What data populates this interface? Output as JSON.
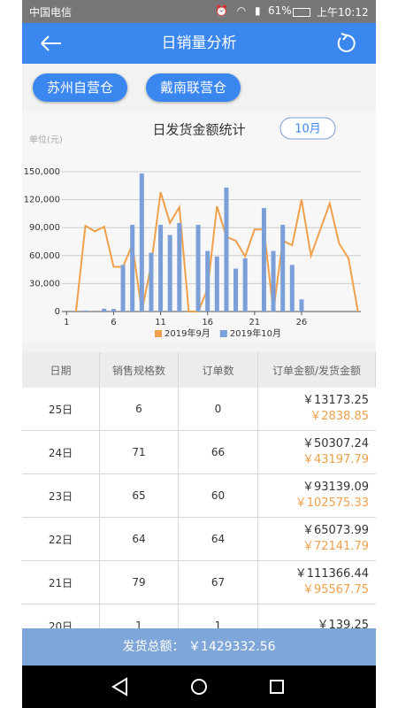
{
  "status_bar": {
    "carrier": "中国电信",
    "battery": "61%",
    "time": "上午10:12"
  },
  "app_bar": {
    "title": "日销量分析"
  },
  "warehouses": [
    "苏州自营仓",
    "戴南联营仓"
  ],
  "chart_data": {
    "type": "combo",
    "title": "日发货金额统计",
    "month_button": "10月",
    "y_unit": "单位(元)",
    "x": [
      1,
      2,
      3,
      4,
      5,
      6,
      7,
      8,
      9,
      10,
      11,
      12,
      13,
      14,
      15,
      16,
      17,
      18,
      19,
      20,
      21,
      22,
      23,
      24,
      25,
      26,
      27,
      28,
      29,
      30,
      31,
      32
    ],
    "xlim": [
      0.5,
      32.5
    ],
    "xticks": [
      1,
      6,
      11,
      16,
      21,
      26
    ],
    "ylim": [
      0,
      150000
    ],
    "yticks": [
      0,
      {
        "value": 30000,
        "label": "30,000"
      },
      {
        "value": 60000,
        "label": "60,000"
      },
      {
        "value": 90000,
        "label": "90,000"
      },
      {
        "value": 120000,
        "label": "120,000"
      },
      {
        "value": 150000,
        "label": "150,000"
      }
    ],
    "grid": true,
    "legend": "bottom",
    "series": [
      {
        "name": "2019年9月",
        "type": "line",
        "color": "#f0a04b",
        "values": [
          null,
          0,
          92000,
          86000,
          91000,
          48000,
          48000,
          72000,
          0,
          50000,
          128000,
          95000,
          112000,
          0,
          0,
          24000,
          113000,
          80000,
          76000,
          59000,
          88000,
          88000,
          0,
          76000,
          71000,
          120000,
          60000,
          88000,
          116000,
          73000,
          57000,
          0
        ]
      },
      {
        "name": "2019年10月",
        "type": "bar",
        "color": "#7b9fd8",
        "values": [
          0,
          0,
          1000,
          0,
          3000,
          2800,
          50000,
          93000,
          148000,
          63000,
          93000,
          82000,
          95000,
          0,
          93000,
          65000,
          59000,
          133000,
          46000,
          57000,
          0,
          111000,
          65000,
          93000,
          50000,
          13000,
          null,
          null,
          null,
          null,
          null,
          null
        ]
      }
    ]
  },
  "table": {
    "columns": [
      "日期",
      "销售规格数",
      "订单数",
      "订单金额/发货金额"
    ],
    "rows": [
      [
        "25日",
        "6",
        "0",
        "￥13173.25",
        "￥2838.85"
      ],
      [
        "24日",
        "71",
        "66",
        "￥50307.24",
        "￥43197.79"
      ],
      [
        "23日",
        "65",
        "60",
        "￥93139.09",
        "￥102575.33"
      ],
      [
        "22日",
        "64",
        "64",
        "￥65073.99",
        "￥72141.79"
      ],
      [
        "21日",
        "79",
        "67",
        "￥111366.44",
        "￥95567.75"
      ],
      [
        "20日",
        "1",
        "1",
        "￥139.25"
      ]
    ]
  },
  "footer": {
    "label": "发货总额：",
    "value": "￥1429332.56"
  }
}
